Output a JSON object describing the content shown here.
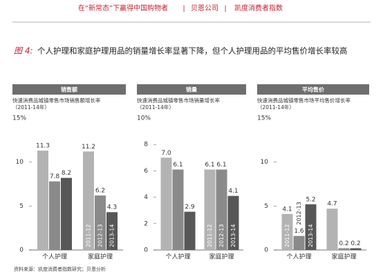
{
  "header": {
    "items": [
      "在“新常态”下赢得中国购物者",
      "贝恩公司",
      "凯度消费者指数"
    ]
  },
  "figure": {
    "label": "图 4:",
    "title": "个人护理和家庭护理用品的销量增长率显著下降，但个人护理用品的平均售价增长率较高"
  },
  "source": "资料来源：凯度消费者指数研究；贝恩分析",
  "chart_data": [
    {
      "type": "bar",
      "title": "销售额",
      "subtitle": "快速消费品城镇零售市场销售额增长率",
      "period": "（2011-14年）",
      "categories": [
        "个人护理",
        "家庭护理"
      ],
      "series": [
        {
          "name": "2011-12",
          "color": "#b3b3b3",
          "values": [
            11.3,
            11.2
          ]
        },
        {
          "name": "2012-13",
          "color": "#8a8a8a",
          "values": [
            7.8,
            6.2
          ]
        },
        {
          "name": "2013-14",
          "color": "#575757",
          "values": [
            8.2,
            4.3
          ]
        }
      ],
      "ylim": [
        0,
        15
      ],
      "yticks": [
        0,
        5,
        10,
        {
          "value": 15,
          "label": "15%"
        }
      ],
      "legend_category": 1
    },
    {
      "type": "bar",
      "title": "销量",
      "subtitle": "快速消费品城镇零售市场销量增长率",
      "period": "（2011-14年）",
      "categories": [
        "个人护理",
        "家庭护理"
      ],
      "series": [
        {
          "name": "2011-12",
          "color": "#b3b3b3",
          "values": [
            7.0,
            6.1
          ],
          "value_labels": [
            "7.0",
            "6.1"
          ]
        },
        {
          "name": "2012-13",
          "color": "#8a8a8a",
          "values": [
            6.1,
            6.1
          ]
        },
        {
          "name": "2013-14",
          "color": "#575757",
          "values": [
            2.9,
            4.1
          ]
        }
      ],
      "ylim": [
        0,
        10
      ],
      "yticks": [
        0,
        2,
        4,
        6,
        8,
        {
          "value": 10,
          "label": "10%"
        }
      ],
      "legend_category": 1
    },
    {
      "type": "bar",
      "title": "平均售价",
      "subtitle": "快速消费品城镇零售市场平均售价增长率",
      "period": "（2011-14年）",
      "categories": [
        "个人护理",
        "家庭护理"
      ],
      "series": [
        {
          "name": "2011-12",
          "color": "#b3b3b3",
          "values": [
            4.1,
            4.7
          ]
        },
        {
          "name": "2012-13",
          "color": "#8a8a8a",
          "values": [
            1.6,
            0.2
          ]
        },
        {
          "name": "2013-14",
          "color": "#575757",
          "values": [
            5.2,
            0.2
          ]
        }
      ],
      "ylim": [
        0,
        15
      ],
      "yticks": [
        0,
        5,
        10,
        {
          "value": 15,
          "label": "15%"
        }
      ],
      "legend_category": 0
    }
  ]
}
